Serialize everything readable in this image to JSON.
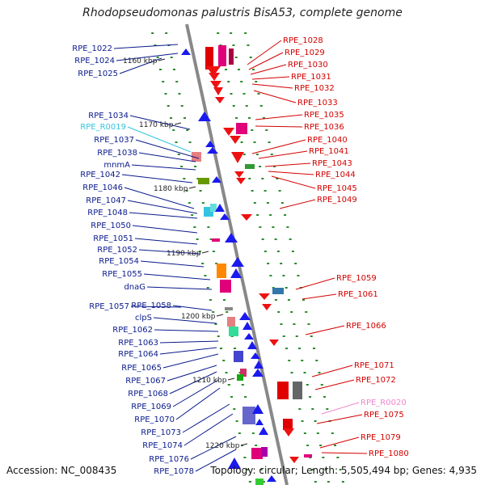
{
  "title": "Rhodopseudomonas palustris BisA53, complete genome",
  "accession": "Accession: NC_008435",
  "topology": "Topology: circular; Length: 5,505,494 bp; Genes: 4,935",
  "colors": {
    "backbone": "#888888",
    "left_label": "#0a1a8c",
    "right_label": "#d40000",
    "rna_left": "#33c5e0",
    "rna_right": "#ee88cc",
    "tick": "#2a8a2a"
  },
  "kbp_marks": [
    "1160 kbp",
    "1170 kbp",
    "1180 kbp",
    "1190 kbp",
    "1200 kbp",
    "1210 kbp",
    "1220 kbp"
  ],
  "left_genes": [
    "RPE_1022",
    "RPE_1024",
    "RPE_1025",
    "RPE_1034",
    "RPE_R0019",
    "RPE_1037",
    "RPE_1038",
    "mnmA",
    "RPE_1042",
    "RPE_1046",
    "RPE_1047",
    "RPE_1048",
    "RPE_1050",
    "RPE_1051",
    "RPE_1052",
    "RPE_1054",
    "RPE_1055",
    "dnaG",
    "RPE_1057",
    "RPE_1058",
    "clpS",
    "RPE_1062",
    "RPE_1063",
    "RPE_1064",
    "RPE_1065",
    "RPE_1067",
    "RPE_1068",
    "RPE_1069",
    "RPE_1070",
    "RPE_1073",
    "RPE_1074",
    "RPE_1076",
    "RPE_1078"
  ],
  "right_genes": [
    "RPE_1028",
    "RPE_1029",
    "RPE_1030",
    "RPE_1031",
    "RPE_1032",
    "RPE_1033",
    "RPE_1035",
    "RPE_1036",
    "RPE_1040",
    "RPE_1041",
    "RPE_1043",
    "RPE_1044",
    "RPE_1045",
    "RPE_1049",
    "RPE_1059",
    "RPE_1061",
    "RPE_1066",
    "RPE_1071",
    "RPE_1072",
    "RPE_R0020",
    "RPE_1075",
    "RPE_1079",
    "RPE_1080"
  ]
}
